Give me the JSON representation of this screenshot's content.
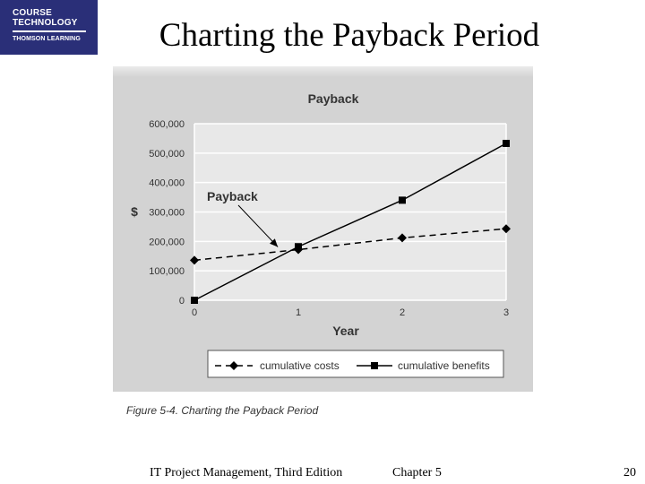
{
  "logo": {
    "line1": "COURSE",
    "line2": "TECHNOLOGY",
    "line3": "THOMSON LEARNING"
  },
  "slide_title": "Charting the Payback Period",
  "caption": "Figure 5-4. Charting the Payback Period",
  "footer": {
    "book": "IT Project Management, Third Edition",
    "chapter": "Chapter 5",
    "page": "20"
  },
  "chart_data": {
    "type": "line",
    "title": "Payback",
    "xlabel": "Year",
    "ylabel": "$",
    "x": [
      0,
      1,
      2,
      3
    ],
    "xticks": [
      "0",
      "1",
      "2",
      "3"
    ],
    "xlim": [
      0,
      3
    ],
    "ylim": [
      0,
      600000
    ],
    "yticks": [
      0,
      100000,
      200000,
      300000,
      400000,
      500000,
      600000
    ],
    "ytick_labels": [
      "0",
      "100,000",
      "200,000",
      "300,000",
      "400,000",
      "500,000",
      "600,000"
    ],
    "grid": "horizontal",
    "legend_position": "bottom",
    "series": [
      {
        "name": "cumulative costs",
        "values": [
          136000,
          172000,
          212000,
          243000
        ],
        "line_style": "dashed",
        "marker": "diamond",
        "color": "#000000"
      },
      {
        "name": "cumulative benefits",
        "values": [
          0,
          182000,
          340000,
          533000
        ],
        "line_style": "solid",
        "marker": "square",
        "color": "#000000"
      }
    ],
    "annotations": [
      {
        "text": "Payback",
        "points_to_x": 0.82,
        "points_to_y": 172000
      }
    ]
  }
}
